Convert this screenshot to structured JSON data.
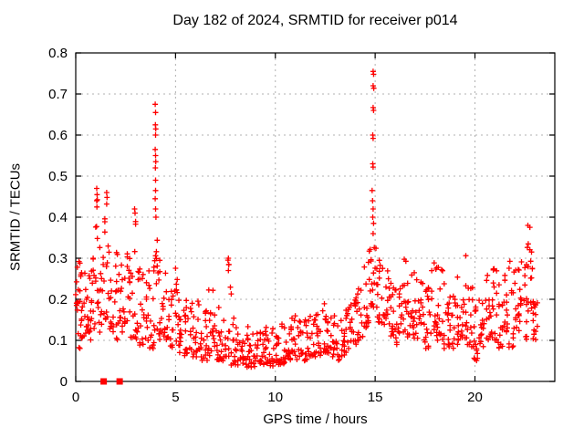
{
  "chart_data": {
    "type": "scatter",
    "title": "Day 182 of 2024, SRMTID for receiver p014",
    "xlabel": "GPS time / hours",
    "ylabel": "SRMTID / TECUs",
    "xlim": [
      0,
      24
    ],
    "ylim": [
      0,
      0.8
    ],
    "x_ticks": [
      0,
      5,
      10,
      15,
      20
    ],
    "x_tick_labels": [
      "0",
      "5",
      "10",
      "15",
      "20"
    ],
    "y_ticks": [
      0,
      0.1,
      0.2,
      0.3,
      0.4,
      0.5,
      0.6,
      0.7,
      0.8
    ],
    "y_tick_labels": [
      "0",
      "0.1",
      "0.2",
      "0.3",
      "0.4",
      "0.5",
      "0.6",
      "0.7",
      "0.8"
    ],
    "grid": true,
    "legend": "none",
    "marker": "plus",
    "colors": {
      "marker": "#ff0000",
      "grid": "#b0b0b0",
      "axis": "#000000",
      "background": "#ffffff",
      "text": "#000000"
    },
    "series_bands_format": "[hour_start, hour_end, y_min, y_max, point_count]",
    "series_bands": [
      [
        0.0,
        0.25,
        0.17,
        0.31,
        14
      ],
      [
        0.0,
        0.3,
        0.08,
        0.13,
        5
      ],
      [
        0.25,
        0.5,
        0.1,
        0.27,
        14
      ],
      [
        0.5,
        0.75,
        0.12,
        0.28,
        14
      ],
      [
        0.75,
        1.0,
        0.1,
        0.33,
        14
      ],
      [
        1.0,
        1.15,
        0.18,
        0.47,
        11
      ],
      [
        1.15,
        1.4,
        0.12,
        0.35,
        12
      ],
      [
        1.4,
        1.65,
        0.15,
        0.46,
        14
      ],
      [
        1.65,
        1.9,
        0.12,
        0.4,
        12
      ],
      [
        1.9,
        2.15,
        0.1,
        0.33,
        12
      ],
      [
        2.15,
        2.4,
        0.12,
        0.3,
        12
      ],
      [
        2.4,
        2.65,
        0.14,
        0.33,
        12
      ],
      [
        2.65,
        2.9,
        0.1,
        0.3,
        12
      ],
      [
        2.9,
        3.15,
        0.1,
        0.42,
        14
      ],
      [
        3.15,
        3.4,
        0.08,
        0.3,
        12
      ],
      [
        3.4,
        3.65,
        0.1,
        0.33,
        12
      ],
      [
        3.65,
        3.9,
        0.08,
        0.28,
        12
      ],
      [
        3.9,
        4.1,
        0.12,
        0.38,
        12
      ],
      [
        4.1,
        4.35,
        0.1,
        0.3,
        12
      ],
      [
        4.35,
        4.6,
        0.1,
        0.28,
        12
      ],
      [
        4.6,
        4.85,
        0.08,
        0.25,
        12
      ],
      [
        4.85,
        5.1,
        0.08,
        0.28,
        12
      ],
      [
        5.1,
        5.4,
        0.07,
        0.22,
        14
      ],
      [
        5.4,
        5.7,
        0.06,
        0.2,
        14
      ],
      [
        5.7,
        6.0,
        0.06,
        0.22,
        14
      ],
      [
        6.0,
        6.3,
        0.06,
        0.2,
        14
      ],
      [
        6.3,
        6.6,
        0.05,
        0.18,
        14
      ],
      [
        6.6,
        6.9,
        0.06,
        0.25,
        14
      ],
      [
        6.9,
        7.2,
        0.05,
        0.18,
        14
      ],
      [
        7.2,
        7.5,
        0.05,
        0.17,
        14
      ],
      [
        7.5,
        7.8,
        0.06,
        0.3,
        15
      ],
      [
        7.8,
        8.1,
        0.04,
        0.16,
        14
      ],
      [
        8.1,
        8.4,
        0.04,
        0.15,
        14
      ],
      [
        8.4,
        8.7,
        0.035,
        0.14,
        14
      ],
      [
        8.7,
        9.0,
        0.035,
        0.13,
        14
      ],
      [
        9.0,
        9.3,
        0.03,
        0.12,
        14
      ],
      [
        9.3,
        9.6,
        0.04,
        0.14,
        14
      ],
      [
        9.6,
        9.9,
        0.035,
        0.13,
        14
      ],
      [
        9.9,
        10.2,
        0.04,
        0.13,
        14
      ],
      [
        10.2,
        10.5,
        0.04,
        0.14,
        14
      ],
      [
        10.5,
        10.8,
        0.05,
        0.15,
        14
      ],
      [
        10.8,
        11.1,
        0.05,
        0.16,
        14
      ],
      [
        11.1,
        11.4,
        0.06,
        0.18,
        14
      ],
      [
        11.4,
        11.7,
        0.05,
        0.16,
        14
      ],
      [
        11.7,
        12.0,
        0.06,
        0.17,
        14
      ],
      [
        12.0,
        12.3,
        0.06,
        0.18,
        14
      ],
      [
        12.3,
        12.6,
        0.07,
        0.19,
        14
      ],
      [
        12.6,
        12.9,
        0.06,
        0.17,
        14
      ],
      [
        12.9,
        13.2,
        0.05,
        0.16,
        14
      ],
      [
        13.2,
        13.5,
        0.06,
        0.17,
        14
      ],
      [
        13.5,
        13.8,
        0.07,
        0.19,
        14
      ],
      [
        13.8,
        14.1,
        0.09,
        0.22,
        14
      ],
      [
        14.1,
        14.4,
        0.1,
        0.24,
        14
      ],
      [
        14.4,
        14.7,
        0.13,
        0.34,
        15
      ],
      [
        14.7,
        15.1,
        0.18,
        0.36,
        20
      ],
      [
        15.1,
        15.4,
        0.14,
        0.3,
        15
      ],
      [
        15.4,
        15.7,
        0.12,
        0.28,
        14
      ],
      [
        15.7,
        16.0,
        0.1,
        0.26,
        14
      ],
      [
        16.0,
        16.3,
        0.09,
        0.24,
        14
      ],
      [
        16.3,
        16.6,
        0.12,
        0.3,
        14
      ],
      [
        16.6,
        16.9,
        0.1,
        0.26,
        14
      ],
      [
        16.9,
        17.2,
        0.1,
        0.27,
        14
      ],
      [
        17.2,
        17.5,
        0.09,
        0.25,
        14
      ],
      [
        17.5,
        17.8,
        0.08,
        0.24,
        14
      ],
      [
        17.8,
        18.1,
        0.1,
        0.335,
        15
      ],
      [
        18.1,
        18.4,
        0.1,
        0.28,
        14
      ],
      [
        18.4,
        18.7,
        0.08,
        0.24,
        14
      ],
      [
        18.7,
        19.0,
        0.08,
        0.22,
        14
      ],
      [
        19.0,
        19.3,
        0.09,
        0.26,
        14
      ],
      [
        19.3,
        19.6,
        0.1,
        0.315,
        15
      ],
      [
        19.6,
        19.9,
        0.08,
        0.24,
        14
      ],
      [
        19.9,
        20.2,
        0.05,
        0.2,
        14
      ],
      [
        20.2,
        20.5,
        0.08,
        0.24,
        14
      ],
      [
        20.5,
        20.8,
        0.1,
        0.3,
        14
      ],
      [
        20.8,
        21.1,
        0.1,
        0.345,
        15
      ],
      [
        21.1,
        21.4,
        0.08,
        0.25,
        14
      ],
      [
        21.4,
        21.7,
        0.12,
        0.28,
        14
      ],
      [
        21.7,
        22.0,
        0.08,
        0.3,
        14
      ],
      [
        22.0,
        22.3,
        0.12,
        0.28,
        14
      ],
      [
        22.3,
        22.6,
        0.1,
        0.33,
        15
      ],
      [
        22.6,
        22.9,
        0.1,
        0.38,
        15
      ],
      [
        22.9,
        23.15,
        0.1,
        0.3,
        14
      ]
    ],
    "peak_points_format": "[hour, tecu]",
    "peak_points": [
      [
        3.98,
        0.675
      ],
      [
        4.0,
        0.655
      ],
      [
        3.99,
        0.625
      ],
      [
        4.01,
        0.615
      ],
      [
        4.0,
        0.6
      ],
      [
        3.98,
        0.565
      ],
      [
        4.0,
        0.55
      ],
      [
        4.01,
        0.535
      ],
      [
        3.99,
        0.52
      ],
      [
        4.0,
        0.49
      ],
      [
        4.0,
        0.465
      ],
      [
        3.98,
        0.445
      ],
      [
        4.0,
        0.42
      ],
      [
        4.02,
        0.4
      ],
      [
        14.9,
        0.755
      ],
      [
        14.92,
        0.748
      ],
      [
        14.9,
        0.72
      ],
      [
        14.93,
        0.714
      ],
      [
        14.9,
        0.667
      ],
      [
        14.92,
        0.66
      ],
      [
        14.88,
        0.6
      ],
      [
        14.9,
        0.592
      ],
      [
        14.88,
        0.53
      ],
      [
        14.9,
        0.522
      ],
      [
        14.85,
        0.465
      ],
      [
        14.87,
        0.44
      ],
      [
        14.9,
        0.42
      ],
      [
        14.88,
        0.4
      ],
      [
        14.92,
        0.385
      ],
      [
        14.9,
        0.36
      ],
      [
        1.05,
        0.47
      ],
      [
        1.07,
        0.455
      ],
      [
        1.05,
        0.44
      ],
      [
        1.06,
        0.425
      ],
      [
        1.55,
        0.46
      ],
      [
        1.57,
        0.448
      ],
      [
        1.55,
        0.432
      ],
      [
        2.95,
        0.42
      ],
      [
        2.97,
        0.41
      ],
      [
        7.65,
        0.3
      ],
      [
        7.67,
        0.285
      ],
      [
        7.65,
        0.27
      ],
      [
        22.65,
        0.38
      ],
      [
        22.67,
        0.335
      ]
    ],
    "zero_marker_hours": [
      1.4,
      2.2
    ]
  }
}
